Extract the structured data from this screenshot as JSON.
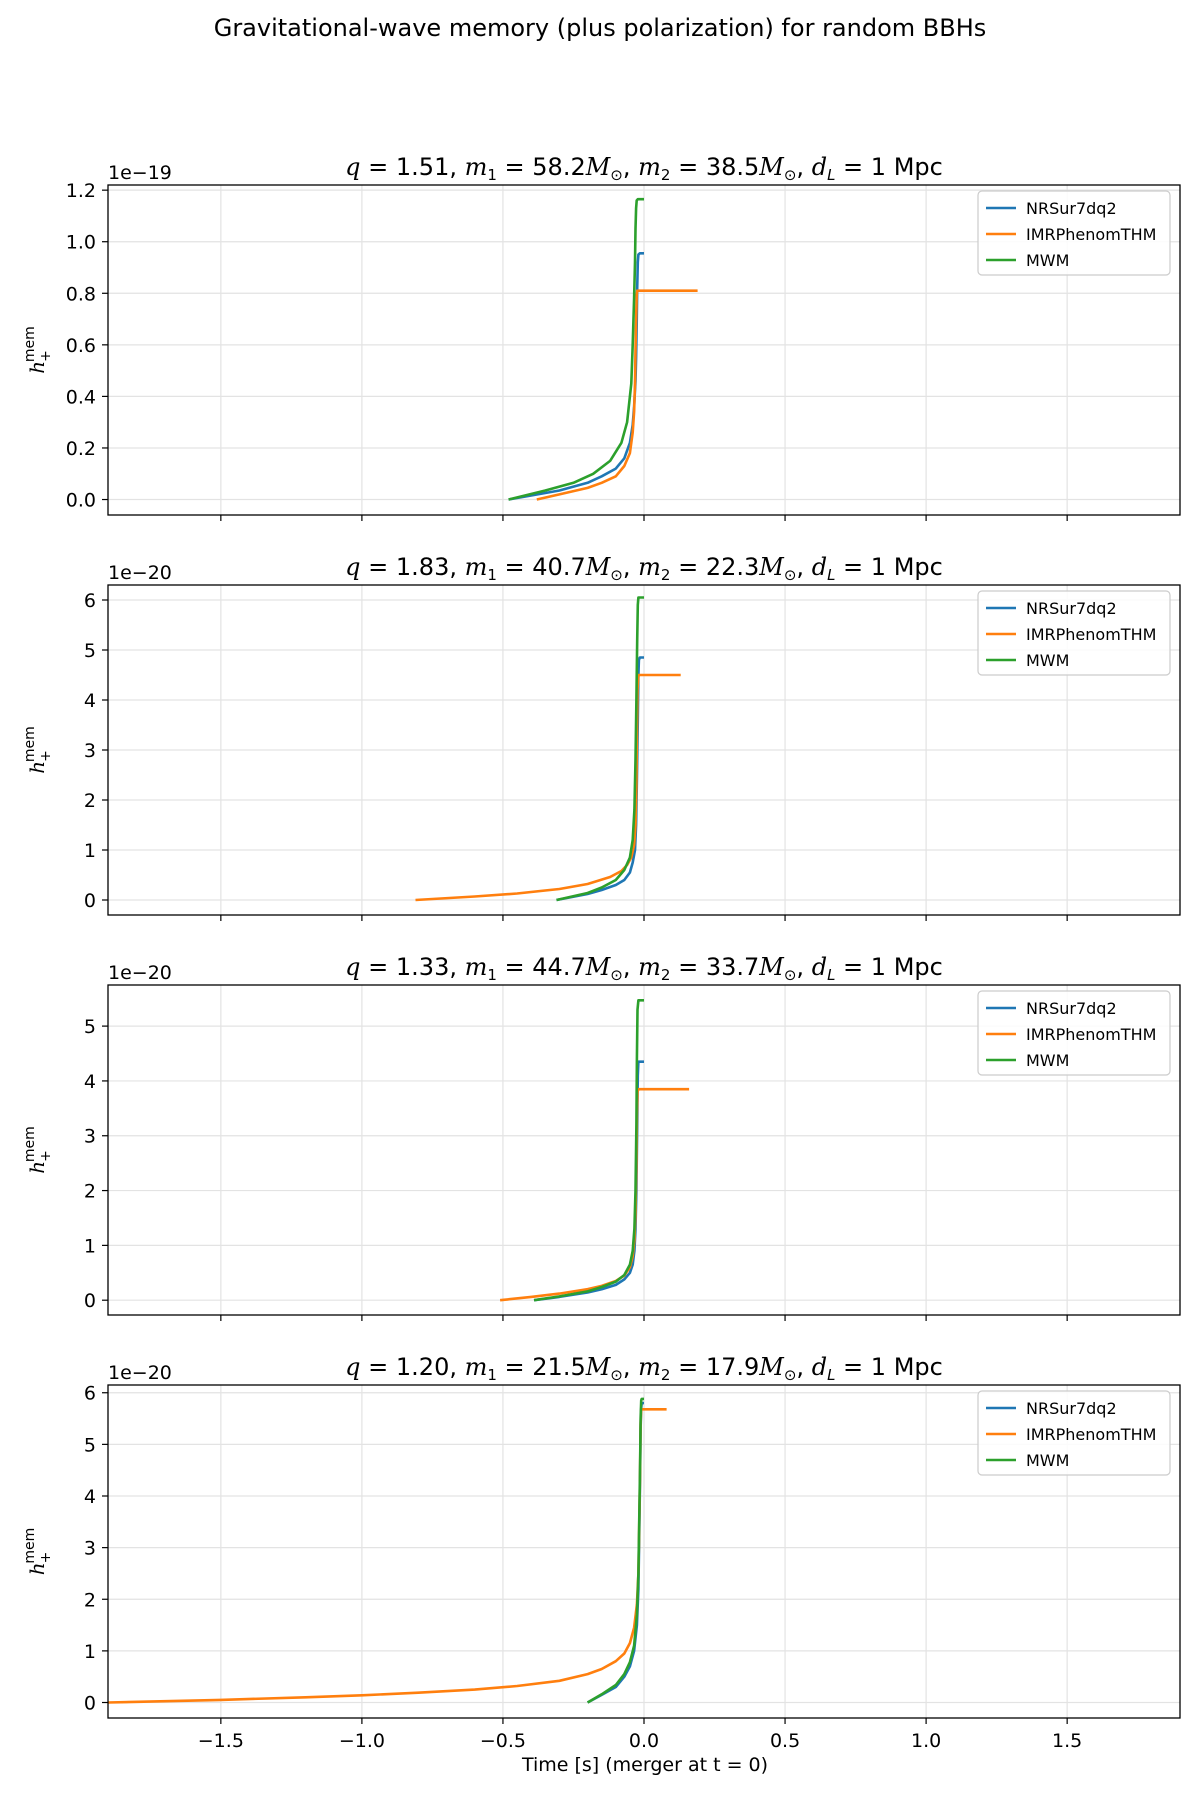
{
  "figure": {
    "suptitle": "Gravitational-wave memory (plus polarization) for random BBHs",
    "xlabel": "Time [s] (merger at t = 0)"
  },
  "chart_data": [
    {
      "type": "line",
      "title_parts": {
        "q": "1.51",
        "m1": "58.2",
        "m2": "38.5",
        "dl": "1"
      },
      "ylabel": "h+mem",
      "offset_text": "1e−19",
      "xlim": [
        -1.9,
        1.9
      ],
      "ylim": [
        -0.06,
        1.22
      ],
      "y_ticks": [
        0.0,
        0.2,
        0.4,
        0.6,
        0.8,
        1.0,
        1.2
      ],
      "y_tick_labels": [
        "0.0",
        "0.2",
        "0.4",
        "0.6",
        "0.8",
        "1.0",
        "1.2"
      ],
      "grid": true,
      "legend_position": "top-right",
      "series": [
        {
          "name": "NRSur7dq2",
          "color": "#1f77b4",
          "x": [
            -0.48,
            -0.3,
            -0.2,
            -0.15,
            -0.1,
            -0.07,
            -0.05,
            -0.04,
            -0.035,
            -0.03,
            -0.028,
            -0.026,
            -0.024,
            -0.022,
            -0.02,
            -0.015,
            -0.01,
            0.0
          ],
          "y": [
            0.0,
            0.035,
            0.065,
            0.09,
            0.12,
            0.16,
            0.22,
            0.29,
            0.36,
            0.46,
            0.55,
            0.68,
            0.82,
            0.92,
            0.95,
            0.955,
            0.955,
            0.955
          ]
        },
        {
          "name": "IMRPhenomTHM",
          "color": "#ff7f0e",
          "x": [
            -0.38,
            -0.3,
            -0.2,
            -0.15,
            -0.1,
            -0.07,
            -0.05,
            -0.04,
            -0.035,
            -0.032,
            -0.03,
            -0.028,
            -0.026,
            -0.024,
            -0.02,
            0.0,
            0.19
          ],
          "y": [
            0.0,
            0.02,
            0.045,
            0.065,
            0.09,
            0.13,
            0.18,
            0.26,
            0.34,
            0.45,
            0.58,
            0.7,
            0.79,
            0.81,
            0.81,
            0.81,
            0.81
          ]
        },
        {
          "name": "MWM",
          "color": "#2ca02c",
          "x": [
            -0.48,
            -0.35,
            -0.25,
            -0.18,
            -0.12,
            -0.08,
            -0.06,
            -0.045,
            -0.04,
            -0.035,
            -0.032,
            -0.03,
            -0.028,
            -0.026,
            -0.022,
            -0.015,
            0.0
          ],
          "y": [
            0.0,
            0.035,
            0.065,
            0.1,
            0.15,
            0.22,
            0.3,
            0.45,
            0.6,
            0.78,
            0.92,
            1.05,
            1.13,
            1.16,
            1.165,
            1.165,
            1.165
          ]
        }
      ]
    },
    {
      "type": "line",
      "title_parts": {
        "q": "1.83",
        "m1": "40.7",
        "m2": "22.3",
        "dl": "1"
      },
      "ylabel": "h+mem",
      "offset_text": "1e−20",
      "xlim": [
        -1.9,
        1.9
      ],
      "ylim": [
        -0.3,
        6.3
      ],
      "y_ticks": [
        0,
        1,
        2,
        3,
        4,
        5,
        6
      ],
      "y_tick_labels": [
        "0",
        "1",
        "2",
        "3",
        "4",
        "5",
        "6"
      ],
      "grid": true,
      "legend_position": "top-right",
      "series": [
        {
          "name": "NRSur7dq2",
          "color": "#1f77b4",
          "x": [
            -0.31,
            -0.2,
            -0.15,
            -0.1,
            -0.07,
            -0.05,
            -0.04,
            -0.032,
            -0.028,
            -0.025,
            -0.022,
            -0.02,
            -0.018,
            -0.015,
            0.0
          ],
          "y": [
            0.0,
            0.12,
            0.2,
            0.3,
            0.4,
            0.55,
            0.75,
            1.0,
            1.5,
            2.4,
            3.6,
            4.5,
            4.8,
            4.85,
            4.85
          ]
        },
        {
          "name": "IMRPhenomTHM",
          "color": "#ff7f0e",
          "x": [
            -0.81,
            -0.6,
            -0.45,
            -0.3,
            -0.2,
            -0.12,
            -0.08,
            -0.06,
            -0.045,
            -0.035,
            -0.03,
            -0.027,
            -0.025,
            -0.023,
            -0.02,
            0.0,
            0.13
          ],
          "y": [
            0.0,
            0.07,
            0.13,
            0.22,
            0.32,
            0.46,
            0.58,
            0.7,
            0.85,
            1.1,
            1.5,
            2.3,
            3.3,
            4.2,
            4.5,
            4.5,
            4.5
          ]
        },
        {
          "name": "MWM",
          "color": "#2ca02c",
          "x": [
            -0.31,
            -0.2,
            -0.15,
            -0.1,
            -0.07,
            -0.05,
            -0.04,
            -0.034,
            -0.03,
            -0.027,
            -0.024,
            -0.022,
            -0.02,
            -0.015,
            0.0
          ],
          "y": [
            0.0,
            0.14,
            0.25,
            0.4,
            0.6,
            0.85,
            1.2,
            1.8,
            2.8,
            4.0,
            5.2,
            5.9,
            6.05,
            6.05,
            6.05
          ]
        }
      ]
    },
    {
      "type": "line",
      "title_parts": {
        "q": "1.33",
        "m1": "44.7",
        "m2": "33.7",
        "dl": "1"
      },
      "ylabel": "h+mem",
      "offset_text": "1e−20",
      "xlim": [
        -1.9,
        1.9
      ],
      "ylim": [
        -0.27,
        5.75
      ],
      "y_ticks": [
        0,
        1,
        2,
        3,
        4,
        5
      ],
      "y_tick_labels": [
        "0",
        "1",
        "2",
        "3",
        "4",
        "5"
      ],
      "grid": true,
      "legend_position": "top-right",
      "series": [
        {
          "name": "NRSur7dq2",
          "color": "#1f77b4",
          "x": [
            -0.39,
            -0.3,
            -0.2,
            -0.15,
            -0.1,
            -0.07,
            -0.05,
            -0.04,
            -0.034,
            -0.03,
            -0.027,
            -0.024,
            -0.022,
            -0.02,
            -0.015,
            0.0
          ],
          "y": [
            0.0,
            0.06,
            0.14,
            0.2,
            0.28,
            0.38,
            0.5,
            0.65,
            0.9,
            1.3,
            2.0,
            3.2,
            4.1,
            4.35,
            4.35,
            4.35
          ]
        },
        {
          "name": "IMRPhenomTHM",
          "color": "#ff7f0e",
          "x": [
            -0.51,
            -0.4,
            -0.3,
            -0.2,
            -0.15,
            -0.1,
            -0.07,
            -0.05,
            -0.04,
            -0.034,
            -0.03,
            -0.027,
            -0.025,
            -0.023,
            -0.02,
            0.0,
            0.16
          ],
          "y": [
            0.0,
            0.06,
            0.12,
            0.2,
            0.26,
            0.35,
            0.45,
            0.6,
            0.8,
            1.1,
            1.6,
            2.5,
            3.4,
            3.8,
            3.85,
            3.85,
            3.85
          ]
        },
        {
          "name": "MWM",
          "color": "#2ca02c",
          "x": [
            -0.39,
            -0.3,
            -0.2,
            -0.15,
            -0.1,
            -0.07,
            -0.05,
            -0.04,
            -0.034,
            -0.03,
            -0.027,
            -0.025,
            -0.023,
            -0.02,
            -0.015,
            0.0
          ],
          "y": [
            0.0,
            0.07,
            0.16,
            0.24,
            0.34,
            0.46,
            0.65,
            0.9,
            1.3,
            2.0,
            3.2,
            4.4,
            5.3,
            5.47,
            5.47,
            5.47
          ]
        }
      ]
    },
    {
      "type": "line",
      "title_parts": {
        "q": "1.20",
        "m1": "21.5",
        "m2": "17.9",
        "dl": "1"
      },
      "ylabel": "h+mem",
      "offset_text": "1e−20",
      "xlim": [
        -1.9,
        1.9
      ],
      "ylim": [
        -0.3,
        6.15
      ],
      "y_ticks": [
        0,
        1,
        2,
        3,
        4,
        5,
        6
      ],
      "y_tick_labels": [
        "0",
        "1",
        "2",
        "3",
        "4",
        "5",
        "6"
      ],
      "x_ticks": [
        -1.5,
        -1.0,
        -0.5,
        0.0,
        0.5,
        1.0,
        1.5
      ],
      "x_tick_labels": [
        "−1.5",
        "−1.0",
        "−0.5",
        "0.0",
        "0.5",
        "1.0",
        "1.5"
      ],
      "grid": true,
      "legend_position": "top-right",
      "series": [
        {
          "name": "NRSur7dq2",
          "color": "#1f77b4",
          "x": [
            -0.2,
            -0.15,
            -0.1,
            -0.07,
            -0.05,
            -0.035,
            -0.025,
            -0.02,
            -0.017,
            -0.014,
            -0.012,
            -0.01,
            -0.008,
            -0.005,
            0.0
          ],
          "y": [
            0.0,
            0.15,
            0.3,
            0.5,
            0.7,
            1.0,
            1.5,
            2.2,
            3.2,
            4.4,
            5.3,
            5.7,
            5.8,
            5.8,
            5.8
          ]
        },
        {
          "name": "IMRPhenomTHM",
          "color": "#ff7f0e",
          "x": [
            -1.9,
            -1.5,
            -1.2,
            -1.0,
            -0.8,
            -0.6,
            -0.45,
            -0.3,
            -0.2,
            -0.15,
            -0.1,
            -0.07,
            -0.05,
            -0.035,
            -0.025,
            -0.02,
            -0.017,
            -0.014,
            -0.012,
            -0.01,
            0.0,
            0.08
          ],
          "y": [
            0.0,
            0.05,
            0.1,
            0.14,
            0.19,
            0.25,
            0.32,
            0.42,
            0.55,
            0.65,
            0.8,
            0.95,
            1.15,
            1.45,
            1.9,
            2.5,
            3.4,
            4.5,
            5.4,
            5.68,
            5.68,
            5.68
          ]
        },
        {
          "name": "MWM",
          "color": "#2ca02c",
          "x": [
            -0.2,
            -0.15,
            -0.1,
            -0.07,
            -0.05,
            -0.035,
            -0.025,
            -0.02,
            -0.017,
            -0.014,
            -0.012,
            -0.01,
            -0.008,
            -0.005,
            0.0
          ],
          "y": [
            0.0,
            0.16,
            0.34,
            0.55,
            0.78,
            1.1,
            1.7,
            2.5,
            3.5,
            4.6,
            5.5,
            5.85,
            5.88,
            5.88,
            5.88
          ]
        }
      ]
    }
  ]
}
